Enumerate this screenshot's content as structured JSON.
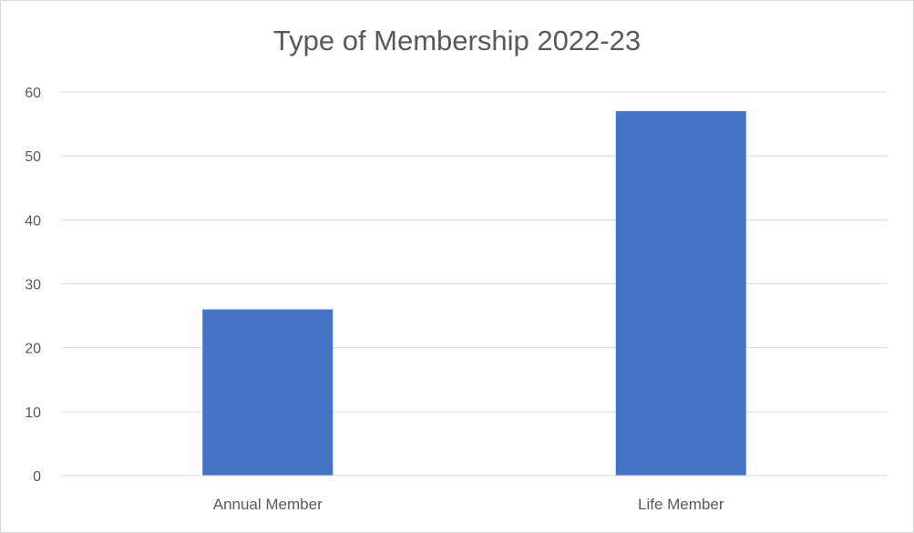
{
  "chart_data": {
    "type": "bar",
    "title": "Type of Membership 2022-23",
    "categories": [
      "Annual Member",
      "Life Member"
    ],
    "values": [
      26,
      57
    ],
    "ylim": [
      0,
      60
    ],
    "ytick_step": 10,
    "yticks": [
      "0",
      "10",
      "20",
      "30",
      "40",
      "50",
      "60"
    ],
    "grid": true,
    "legend": "none",
    "bar_color": "#4472c4",
    "grid_color": "#d9d9d9"
  }
}
